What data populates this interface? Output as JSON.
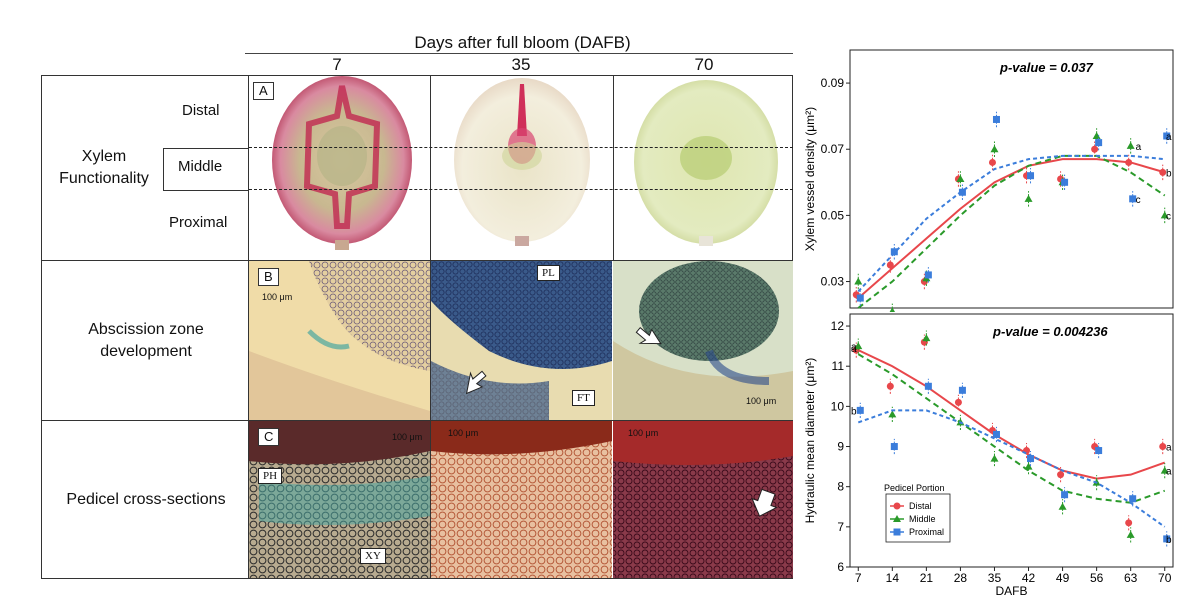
{
  "header": {
    "title": "Days after full bloom (DAFB)",
    "days": [
      "7",
      "35",
      "70"
    ]
  },
  "rows": {
    "xylem": {
      "label_line1": "Xylem",
      "label_line2": "Functionality",
      "sub": [
        "Distal",
        "Middle",
        "Proximal"
      ],
      "panel": "A"
    },
    "abscission": {
      "label_line1": "Abscission zone",
      "label_line2": "development",
      "panel": "B"
    },
    "pedicel": {
      "label": "Pedicel cross-sections",
      "panel": "C"
    }
  },
  "tags": {
    "pl": "PL",
    "ft": "FT",
    "ph": "PH",
    "xy": "XY"
  },
  "scalebar": "100 μm",
  "chart_data": [
    {
      "type": "scatter",
      "title": "p-value = 0.037",
      "xlabel": "DAFB",
      "ylabel": "Xylem vessel density (μm²)",
      "x": [
        7,
        14,
        21,
        28,
        35,
        42,
        49,
        56,
        63,
        70
      ],
      "xticks": [
        "7",
        "14",
        "21",
        "28",
        "35",
        "42",
        "49",
        "56",
        "63",
        "70"
      ],
      "yticks": [
        "0.03",
        "0.05",
        "0.07",
        "0.09"
      ],
      "ylim": [
        0.022,
        0.1
      ],
      "series": [
        {
          "name": "Distal",
          "color": "#e8474b",
          "values": [
            0.026,
            0.035,
            0.03,
            0.061,
            0.066,
            0.062,
            0.061,
            0.07,
            0.066,
            0.063
          ],
          "fit": [
            0.025,
            0.034,
            0.043,
            0.052,
            0.06,
            0.065,
            0.067,
            0.067,
            0.066,
            0.063
          ]
        },
        {
          "name": "Middle",
          "color": "#2a9a2a",
          "values": [
            0.03,
            0.021,
            0.031,
            0.061,
            0.07,
            0.055,
            0.06,
            0.074,
            0.071,
            0.05
          ],
          "fit": [
            0.022,
            0.03,
            0.04,
            0.05,
            0.059,
            0.065,
            0.068,
            0.068,
            0.063,
            0.056
          ]
        },
        {
          "name": "Proximal",
          "color": "#3b7ddb",
          "values": [
            0.025,
            0.039,
            0.032,
            0.057,
            0.079,
            0.062,
            0.06,
            0.072,
            0.055,
            0.074
          ],
          "fit": [
            0.027,
            0.038,
            0.049,
            0.057,
            0.064,
            0.067,
            0.068,
            0.068,
            0.068,
            0.067
          ]
        }
      ],
      "end_letters": [
        "b",
        "c",
        "a"
      ],
      "mid_letters": [
        "a",
        "c"
      ]
    },
    {
      "type": "scatter",
      "title": "p-value = 0.004236",
      "xlabel": "DAFB",
      "ylabel": "Hydraulic mean diameter (μm²)",
      "x": [
        7,
        14,
        21,
        28,
        35,
        42,
        49,
        56,
        63,
        70
      ],
      "xticks": [
        "7",
        "14",
        "21",
        "28",
        "35",
        "42",
        "49",
        "56",
        "63",
        "70"
      ],
      "yticks": [
        "6",
        "7",
        "8",
        "9",
        "10",
        "11",
        "12"
      ],
      "ylim": [
        6,
        12.3
      ],
      "series": [
        {
          "name": "Distal",
          "color": "#e8474b",
          "values": [
            11.4,
            10.5,
            11.6,
            10.1,
            9.4,
            8.9,
            8.3,
            9.0,
            7.1,
            9.0
          ],
          "fit": [
            11.4,
            11.0,
            10.5,
            9.9,
            9.3,
            8.8,
            8.4,
            8.2,
            8.3,
            8.6
          ]
        },
        {
          "name": "Middle",
          "color": "#2a9a2a",
          "values": [
            11.5,
            9.8,
            11.7,
            9.6,
            8.7,
            8.5,
            7.5,
            8.1,
            6.8,
            8.4
          ],
          "fit": [
            11.3,
            10.8,
            10.2,
            9.6,
            9.0,
            8.4,
            7.9,
            7.7,
            7.6,
            7.9
          ]
        },
        {
          "name": "Proximal",
          "color": "#3b7ddb",
          "values": [
            9.9,
            9.0,
            10.5,
            10.4,
            9.3,
            8.7,
            7.8,
            8.9,
            7.7,
            6.7
          ],
          "fit": [
            9.6,
            9.9,
            9.9,
            9.6,
            9.2,
            8.8,
            8.4,
            8.1,
            7.6,
            7.0
          ]
        }
      ],
      "start_letters": [
        "a",
        "a",
        "b"
      ],
      "end_letters": [
        "a",
        "a",
        "b"
      ],
      "legend": {
        "title": "Pedicel Portion",
        "items": [
          "Distal",
          "Middle",
          "Proximal"
        ]
      }
    }
  ]
}
